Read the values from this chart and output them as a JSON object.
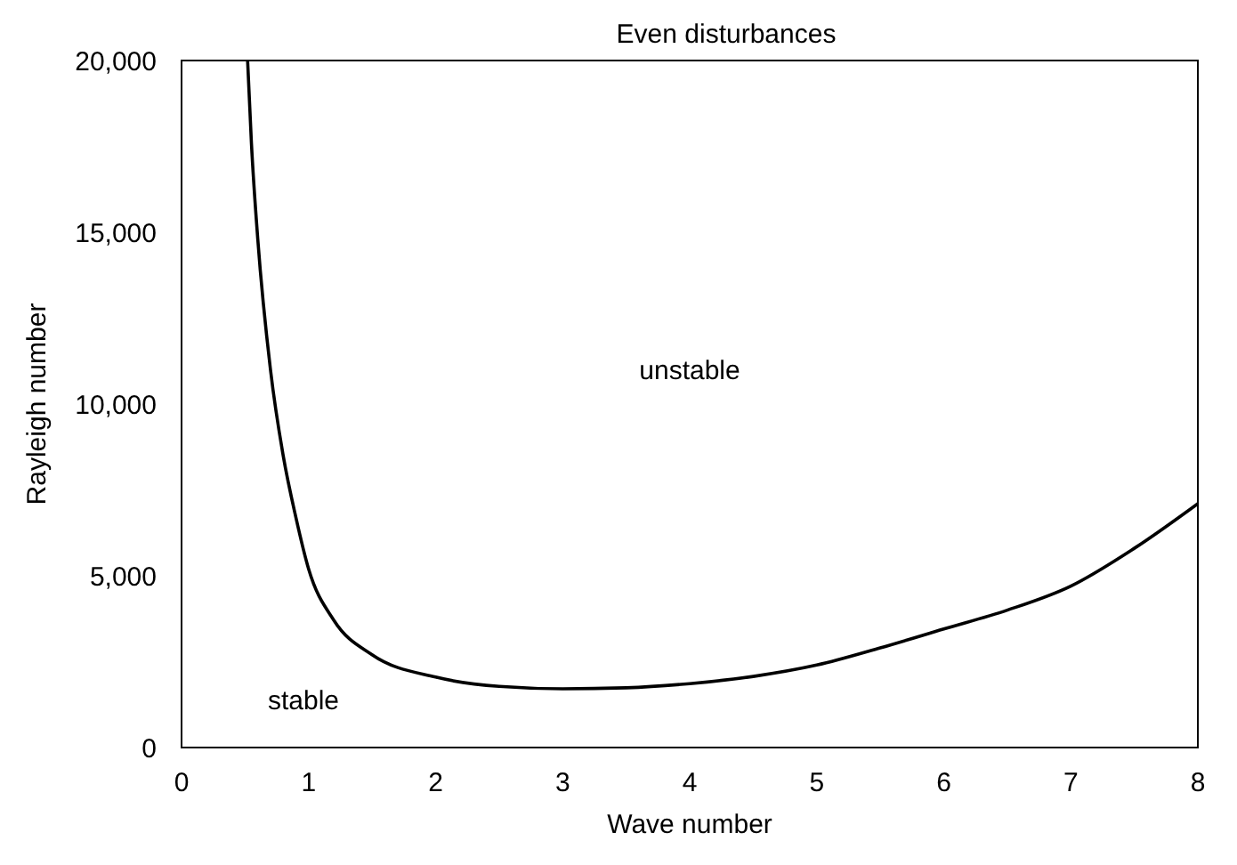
{
  "chart_data": {
    "type": "line",
    "title": "Even disturbances",
    "xlabel": "Wave number",
    "ylabel": "Rayleigh number",
    "x": [
      0.52,
      0.55,
      0.6,
      0.7,
      0.8,
      0.9,
      1.0,
      1.2,
      1.5,
      2.0,
      2.5,
      3.0,
      3.5,
      4.0,
      4.5,
      5.0,
      5.5,
      6.0,
      6.5,
      7.0,
      7.5,
      8.0
    ],
    "series": [
      {
        "color": "#000000",
        "values": [
          20000,
          17600,
          14800,
          11000,
          8500,
          6700,
          5200,
          3700,
          2700,
          2050,
          1780,
          1710,
          1740,
          1860,
          2070,
          2400,
          2900,
          3450,
          4000,
          4700,
          5800,
          7100
        ]
      }
    ],
    "xlim": [
      0,
      8
    ],
    "ylim": [
      0,
      20000
    ],
    "xticks": [
      0,
      1,
      2,
      3,
      4,
      5,
      6,
      7,
      8
    ],
    "yticks": [
      {
        "value": 0,
        "label": "0"
      },
      {
        "value": 5000,
        "label": "5,000"
      },
      {
        "value": 10000,
        "label": "10,000"
      },
      {
        "value": 15000,
        "label": "15,000"
      },
      {
        "value": 20000,
        "label": "20,000"
      }
    ],
    "annotations": [
      "unstable",
      "stable"
    ],
    "grid": false,
    "legend": false,
    "marker": "none",
    "line_style": "solid"
  }
}
